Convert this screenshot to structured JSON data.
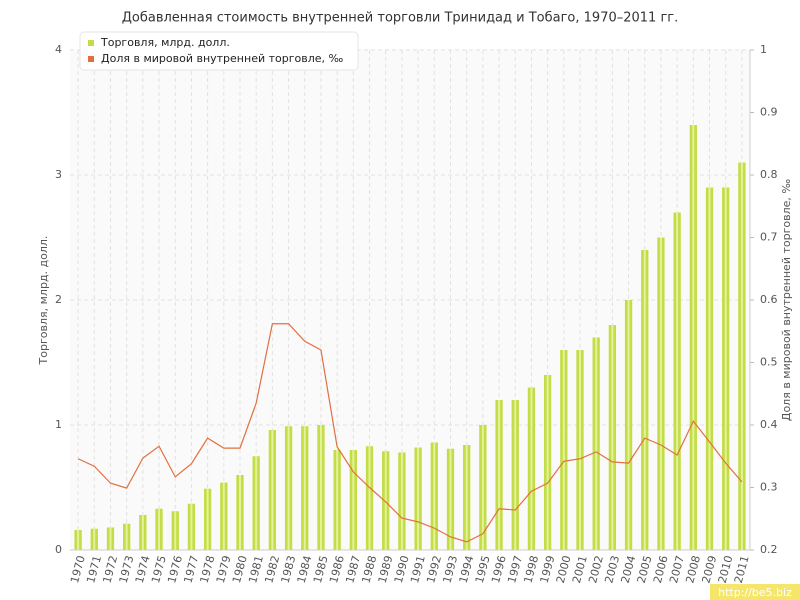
{
  "chart_data": {
    "type": "bar-line",
    "title": "Добавленная стоимость внутренней торговли Тринидад и Тобаго, 1970–2011 гг.",
    "y_label": "Торговля, млрд. долл.",
    "y2_label": "Доля в мировой внутренней торговле, ‰",
    "categories": [
      "1970",
      "1971",
      "1972",
      "1973",
      "1974",
      "1975",
      "1976",
      "1977",
      "1978",
      "1979",
      "1980",
      "1981",
      "1982",
      "1983",
      "1984",
      "1985",
      "1986",
      "1987",
      "1988",
      "1989",
      "1990",
      "1991",
      "1992",
      "1993",
      "1994",
      "1995",
      "1996",
      "1997",
      "1998",
      "1999",
      "2000",
      "2001",
      "2002",
      "2003",
      "2004",
      "2005",
      "2006",
      "2007",
      "2008",
      "2009",
      "2010",
      "2011"
    ],
    "series": [
      {
        "name": "Торговля, млрд. долл.",
        "type": "bar",
        "color": "#c2dd45",
        "values": [
          0.16,
          0.17,
          0.18,
          0.21,
          0.28,
          0.33,
          0.31,
          0.37,
          0.49,
          0.54,
          0.6,
          0.75,
          0.96,
          0.99,
          0.99,
          1.0,
          0.8,
          0.8,
          0.83,
          0.79,
          0.78,
          0.82,
          0.86,
          0.81,
          0.84,
          1.0,
          1.2,
          1.2,
          1.3,
          1.4,
          1.6,
          1.6,
          1.7,
          1.8,
          2.0,
          2.4,
          2.5,
          2.7,
          3.4,
          2.9,
          2.9,
          3.1
        ]
      },
      {
        "name": "Доля в мировой внутренней торговле, ‰",
        "type": "line",
        "axis": "y2",
        "color": "#e07040",
        "values": [
          0.346,
          0.334,
          0.307,
          0.299,
          0.347,
          0.366,
          0.317,
          0.338,
          0.379,
          0.363,
          0.363,
          0.435,
          0.562,
          0.562,
          0.534,
          0.52,
          0.365,
          0.325,
          0.3,
          0.277,
          0.251,
          0.245,
          0.235,
          0.221,
          0.213,
          0.226,
          0.266,
          0.264,
          0.294,
          0.307,
          0.342,
          0.346,
          0.357,
          0.341,
          0.339,
          0.379,
          0.368,
          0.352,
          0.406,
          0.373,
          0.339,
          0.309
        ]
      }
    ],
    "ylim": [
      0,
      4
    ],
    "yticks": [
      0,
      1,
      2,
      3,
      4
    ],
    "y2lim": [
      0.2,
      1
    ],
    "y2ticks": [
      0.2,
      0.3,
      0.4,
      0.5,
      0.6,
      0.7,
      0.8,
      0.9,
      1
    ],
    "grid": true,
    "legend": "top-left",
    "watermark": "http://be5.biz"
  }
}
